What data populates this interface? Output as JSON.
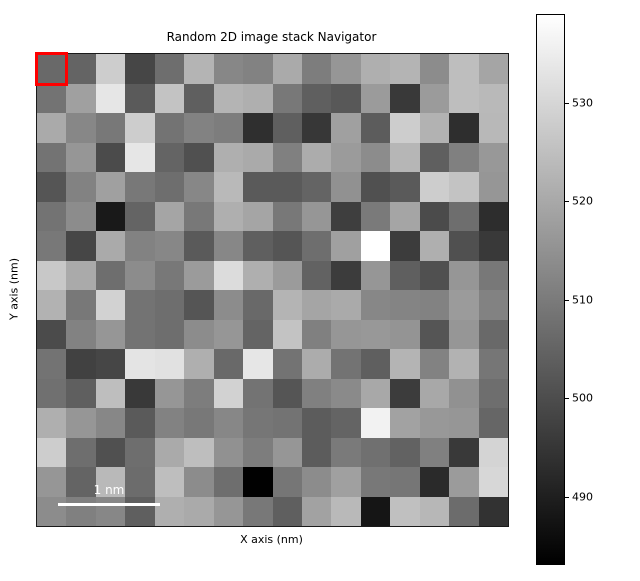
{
  "figure": {
    "title": "Random 2D image stack Navigator",
    "xlabel": "X axis (nm)",
    "ylabel": "Y axis (nm)",
    "background_color": "#ffffff"
  },
  "selection": {
    "row": 0,
    "col": 0,
    "color": "#ff0000"
  },
  "scalebar": {
    "label": "1 nm",
    "color": "#ffffff"
  },
  "colorbar": {
    "orientation": "vertical",
    "vmin": 483.1,
    "vmax": 539.0,
    "ticks": [
      530,
      520,
      510,
      500,
      490
    ],
    "top_color": "#ffffff",
    "bottom_color": "#000000"
  },
  "chart_data": {
    "type": "heatmap",
    "title": "Random 2D image stack Navigator",
    "xlabel": "X axis (nm)",
    "ylabel": "Y axis (nm)",
    "colormap": "gray",
    "rows": 16,
    "cols": 16,
    "vmin": 483.1,
    "vmax": 539.0,
    "colorbar_ticks": [
      530,
      520,
      510,
      500,
      490
    ],
    "values": [
      [
        506.1,
        505.0,
        528.0,
        498.4,
        507.2,
        522.5,
        512.6,
        511.6,
        520.3,
        510.5,
        515.9,
        521.4,
        522.5,
        513.7,
        524.7,
        519.2
      ],
      [
        508.3,
        518.1,
        533.5,
        502.8,
        525.8,
        503.9,
        522.5,
        521.4,
        509.4,
        503.9,
        502.3,
        517.0,
        495.7,
        517.0,
        524.7,
        523.6
      ],
      [
        520.3,
        512.6,
        509.4,
        528.0,
        508.3,
        511.6,
        510.5,
        493.5,
        503.9,
        495.1,
        518.1,
        503.2,
        528.0,
        522.1,
        493.1,
        523.4
      ],
      [
        508.3,
        515.9,
        499.5,
        533.5,
        505.0,
        500.6,
        521.4,
        520.3,
        511.1,
        520.8,
        517.0,
        513.7,
        523.0,
        503.9,
        511.1,
        516.4
      ],
      [
        501.7,
        511.6,
        518.1,
        509.4,
        507.2,
        512.6,
        523.6,
        502.8,
        502.8,
        505.0,
        514.8,
        500.6,
        502.8,
        528.0,
        525.8,
        515.9
      ],
      [
        508.3,
        513.7,
        488.5,
        505.0,
        519.2,
        509.4,
        521.4,
        519.2,
        509.4,
        515.9,
        496.6,
        509.8,
        519.2,
        499.5,
        507.2,
        492.9
      ],
      [
        509.4,
        498.4,
        520.3,
        511.6,
        512.6,
        502.8,
        512.6,
        503.9,
        501.7,
        507.2,
        518.1,
        539.0,
        496.2,
        521.4,
        500.6,
        495.7
      ],
      [
        526.9,
        520.3,
        507.2,
        513.7,
        509.4,
        517.0,
        531.3,
        521.4,
        517.0,
        504.5,
        496.2,
        515.9,
        503.9,
        500.6,
        515.9,
        509.4
      ],
      [
        522.1,
        509.4,
        529.1,
        508.3,
        507.2,
        501.7,
        513.7,
        506.1,
        522.5,
        519.2,
        520.3,
        512.6,
        512.0,
        511.6,
        517.0,
        511.6
      ],
      [
        499.5,
        511.6,
        515.9,
        508.3,
        507.2,
        513.7,
        515.9,
        505.0,
        525.8,
        511.1,
        515.9,
        516.4,
        515.5,
        501.7,
        515.9,
        506.1
      ],
      [
        508.3,
        497.3,
        498.4,
        533.1,
        532.4,
        521.4,
        506.1,
        533.5,
        508.3,
        520.8,
        508.3,
        503.9,
        522.5,
        511.6,
        522.1,
        508.9
      ],
      [
        507.6,
        503.9,
        524.7,
        495.7,
        515.9,
        510.5,
        529.1,
        508.3,
        501.7,
        511.1,
        513.3,
        519.9,
        496.2,
        519.9,
        514.8,
        507.2
      ],
      [
        521.4,
        515.9,
        512.6,
        502.8,
        511.6,
        509.4,
        512.6,
        508.9,
        508.3,
        503.2,
        505.0,
        536.1,
        518.6,
        516.4,
        515.9,
        505.4
      ],
      [
        528.0,
        507.2,
        500.6,
        507.2,
        520.3,
        524.7,
        514.8,
        510.5,
        515.9,
        503.2,
        509.8,
        507.6,
        504.5,
        511.1,
        495.7,
        529.6
      ],
      [
        515.9,
        505.0,
        523.6,
        506.7,
        524.7,
        513.7,
        507.2,
        483.4,
        508.9,
        513.7,
        518.1,
        509.4,
        508.9,
        492.2,
        517.0,
        530.2
      ],
      [
        513.7,
        511.1,
        512.6,
        503.9,
        521.4,
        520.3,
        515.9,
        509.4,
        503.9,
        518.6,
        523.6,
        487.8,
        525.2,
        523.2,
        506.7,
        494.0
      ]
    ]
  }
}
